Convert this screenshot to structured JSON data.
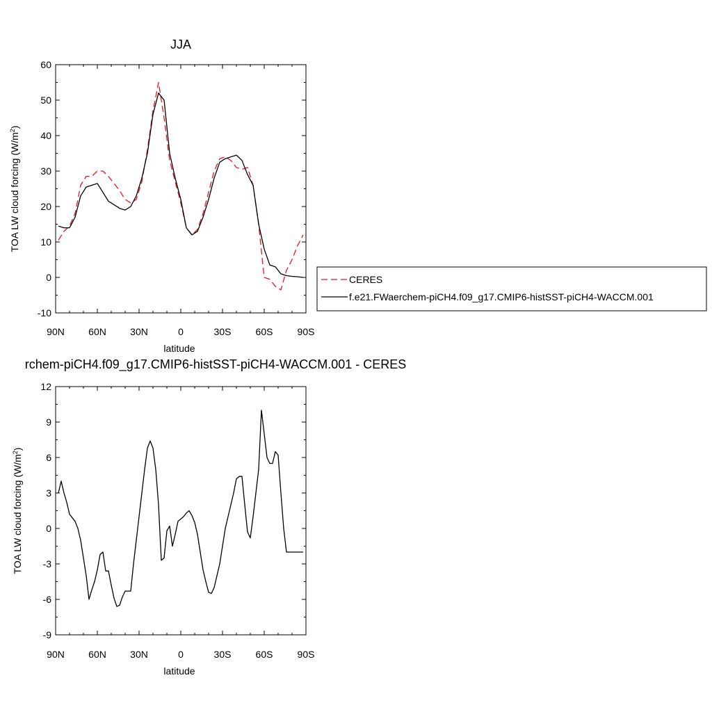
{
  "colors": {
    "ceres": "#e8141b",
    "model": "#000000"
  },
  "chart_data": [
    {
      "type": "line",
      "title": "JJA",
      "xlabel": "latitude",
      "ylabel": "TOA LW cloud forcing (W/m",
      "ylabel_sup": "2",
      "ylabel_close": ")",
      "xlim": [
        90,
        -90
      ],
      "ylim": [
        -10,
        60
      ],
      "x_ticks": [
        90,
        60,
        30,
        0,
        -30,
        -60,
        -90
      ],
      "x_tick_labels": [
        "90N",
        "60N",
        "30N",
        "0",
        "30S",
        "60S",
        "90S"
      ],
      "y_ticks": [
        -10,
        0,
        10,
        20,
        30,
        40,
        50,
        60
      ],
      "y_tick_labels": [
        "-10",
        "0",
        "10",
        "20",
        "30",
        "40",
        "50",
        "60"
      ],
      "legend_position": "right",
      "series": [
        {
          "name": "CERES",
          "style": "dashed",
          "color": "#e8141b",
          "x": [
            88,
            84,
            80,
            76,
            72,
            68,
            64,
            60,
            56,
            52,
            48,
            44,
            40,
            36,
            32,
            28,
            24,
            20,
            16,
            12,
            8,
            4,
            0,
            -4,
            -8,
            -12,
            -16,
            -20,
            -24,
            -28,
            -32,
            -36,
            -40,
            -44,
            -48,
            -52,
            -56,
            -60,
            -64,
            -68,
            -72,
            -76,
            -80,
            -84,
            -88
          ],
          "y": [
            10.5,
            13,
            14.5,
            18,
            26,
            28.5,
            28.5,
            30,
            30,
            28.5,
            26.5,
            24.5,
            22,
            21,
            22,
            27,
            36,
            47,
            55,
            45,
            33,
            27,
            21,
            14,
            12,
            13.5,
            18,
            24,
            30,
            33.5,
            34,
            33,
            31,
            30.5,
            31,
            26,
            15,
            0,
            -0.5,
            -2.5,
            -3.5,
            2,
            5,
            9,
            12
          ]
        },
        {
          "name": "f.e21.FWaerchem-piCH4.f09_g17.CMIP6-histSST-piCH4-WACCM.001",
          "style": "solid",
          "color": "#000000",
          "x": [
            88,
            84,
            80,
            76,
            72,
            68,
            64,
            60,
            56,
            52,
            48,
            44,
            40,
            36,
            32,
            28,
            24,
            20,
            16,
            12,
            8,
            4,
            0,
            -4,
            -8,
            -12,
            -16,
            -20,
            -24,
            -28,
            -32,
            -36,
            -40,
            -44,
            -48,
            -52,
            -56,
            -60,
            -64,
            -68,
            -72,
            -76,
            -80,
            -84,
            -88
          ],
          "y": [
            14.5,
            14,
            14,
            17,
            23,
            25.5,
            26,
            26.5,
            24,
            21.5,
            20.5,
            19.5,
            19,
            20,
            23,
            28,
            35,
            46,
            52,
            50,
            35,
            28,
            22,
            14,
            12,
            13,
            17,
            22,
            28,
            32.5,
            33.5,
            34,
            34.5,
            33,
            29,
            26,
            15,
            8,
            3.5,
            3,
            1,
            0.5,
            0.3,
            0.2,
            0
          ]
        }
      ]
    },
    {
      "type": "line",
      "title": "rchem-piCH4.f09_g17.CMIP6-histSST-piCH4-WACCM.001 - CERES",
      "xlabel": "latitude",
      "ylabel": "TOA LW cloud forcing (W/m",
      "ylabel_sup": "2",
      "ylabel_close": ")",
      "xlim": [
        90,
        -90
      ],
      "ylim": [
        -9,
        12
      ],
      "x_ticks": [
        90,
        60,
        30,
        0,
        -30,
        -60,
        -90
      ],
      "x_tick_labels": [
        "90N",
        "60N",
        "30N",
        "0",
        "30S",
        "60S",
        "90S"
      ],
      "y_ticks": [
        -9,
        -6,
        -3,
        0,
        3,
        6,
        9,
        12
      ],
      "y_tick_labels": [
        "-9",
        "-6",
        "-3",
        "0",
        "3",
        "6",
        "9",
        "12"
      ],
      "series": [
        {
          "style": "solid",
          "color": "#000000",
          "x": [
            88,
            86,
            84,
            82,
            80,
            78,
            76,
            74,
            72,
            70,
            68,
            66,
            64,
            62,
            60,
            58,
            56,
            54,
            52,
            50,
            48,
            46,
            44,
            42,
            40,
            38,
            36,
            34,
            32,
            30,
            28,
            26,
            24,
            22,
            20,
            18,
            16,
            14,
            12,
            10,
            8,
            6,
            4,
            2,
            0,
            -2,
            -4,
            -6,
            -8,
            -10,
            -12,
            -14,
            -16,
            -18,
            -20,
            -22,
            -24,
            -26,
            -28,
            -30,
            -32,
            -34,
            -36,
            -38,
            -40,
            -42,
            -44,
            -46,
            -48,
            -50,
            -52,
            -54,
            -56,
            -58,
            -60,
            -62,
            -64,
            -66,
            -68,
            -70,
            -72,
            -74,
            -76,
            -78,
            -80,
            -82,
            -84,
            -86,
            -88
          ],
          "y": [
            3,
            4,
            3,
            2.2,
            1.2,
            0.9,
            0.6,
            0,
            -1,
            -2.5,
            -4,
            -6,
            -5.2,
            -4.5,
            -3.5,
            -2.2,
            -2,
            -3.6,
            -3.6,
            -4.8,
            -5.9,
            -6.6,
            -6.5,
            -5.8,
            -5.3,
            -5.3,
            -5.3,
            -3,
            -1,
            1,
            3,
            5,
            6.8,
            7.4,
            6.8,
            5,
            2,
            -2.7,
            -2.5,
            -0.2,
            0.2,
            -1.5,
            -0.5,
            0.6,
            0.8,
            1,
            1.3,
            1.5,
            1.1,
            0.5,
            -0.5,
            -2,
            -3.5,
            -4.5,
            -5.4,
            -5.5,
            -5,
            -4,
            -3,
            -1.5,
            0,
            1,
            2,
            3,
            4.2,
            4.4,
            4.4,
            2,
            -0.3,
            -0.8,
            1,
            3,
            5,
            10,
            8,
            6,
            5.5,
            5.5,
            6.5,
            6.2,
            3,
            0,
            -2,
            -2,
            -2,
            -2,
            -2,
            -2,
            -2
          ]
        }
      ]
    }
  ]
}
